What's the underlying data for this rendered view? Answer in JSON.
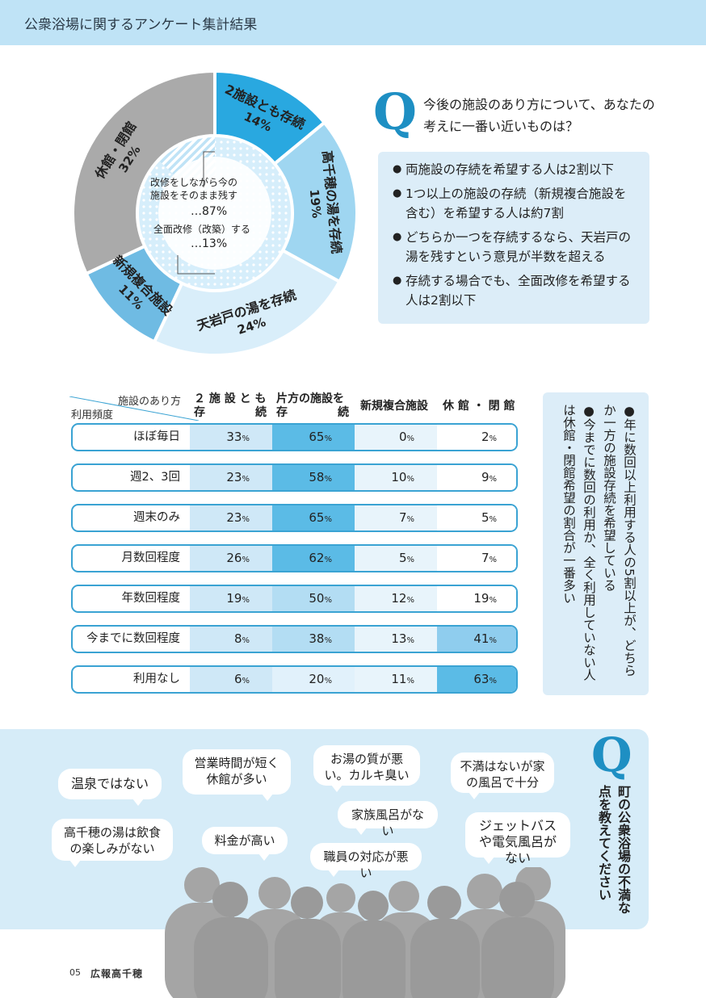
{
  "header": {
    "title": "公衆浴場に関するアンケート集計結果"
  },
  "donut": {
    "segments": [
      {
        "label": "2施設とも存続",
        "value": "14%",
        "color": "#29a8e0"
      },
      {
        "label": "高千穂の湯を存続",
        "value": "19%",
        "color": "#9fd6f1"
      },
      {
        "label": "天岩戸の湯を存続",
        "value": "24%",
        "color": "#d9eefa"
      },
      {
        "label": "新規複合施設",
        "value": "11%",
        "color": "#6fbbe3"
      },
      {
        "label": "休館・閉館",
        "value": "32%",
        "color": "#aaaaaa"
      }
    ],
    "inner": {
      "line1": "改修をしながら今の",
      "line2": "施設をそのまま残す",
      "value1": "…87%",
      "line3": "全面改修（改築）する",
      "value2": "…13%"
    }
  },
  "q1": {
    "mark": "Q",
    "text": "今後の施設のあり方について、あなたの考えに一番い近いものは？",
    "findings": [
      "両施設の存続を希望する人は2割以下",
      "1つ以上の施設の存続（新規複合施設を含む）を希望する人は約7割",
      "どちらか一つを存続するなら、天岩戸の湯を残すという意見が半数を超える",
      "存続する場合でも、全面改修を希望する人は2割以下"
    ]
  },
  "table": {
    "corner_top": "施設のあり方",
    "corner_bottom": "利用頻度",
    "columns": [
      {
        "line1": "２ 施 設 と も",
        "line2a": "存",
        "line2b": "続"
      },
      {
        "line1": "片方の施設を",
        "line2a": "存",
        "line2b": "続"
      },
      {
        "line1": "新規複合施設",
        "line2a": "",
        "line2b": ""
      },
      {
        "line1": "休 館 ・ 閉 館",
        "line2a": "",
        "line2b": ""
      }
    ],
    "rows": [
      {
        "label": "ほぼ毎日",
        "values": [
          "33",
          "65",
          "0",
          "2"
        ]
      },
      {
        "label": "週2、3回",
        "values": [
          "23",
          "58",
          "10",
          "9"
        ]
      },
      {
        "label": "週末のみ",
        "values": [
          "23",
          "65",
          "7",
          "5"
        ]
      },
      {
        "label": "月数回程度",
        "values": [
          "26",
          "62",
          "5",
          "7"
        ]
      },
      {
        "label": "年数回程度",
        "values": [
          "19",
          "50",
          "12",
          "19"
        ]
      },
      {
        "label": "今までに数回程度",
        "values": [
          "8",
          "38",
          "13",
          "41"
        ]
      },
      {
        "label": "利用なし",
        "values": [
          "6",
          "20",
          "11",
          "63"
        ]
      }
    ],
    "unit": "%",
    "side_notes": [
      "年に数回以上利用する人の5割以上が、どちらか一方の施設存続を希望している",
      "今までに数回の利用か、全く利用していない人は休館・閉館希望の割合が一番多い"
    ]
  },
  "q2": {
    "mark": "Q",
    "text": "町の公衆浴場の不満な点を教えてください",
    "bubbles": [
      "温泉ではない",
      "営業時間が短く休館が多い",
      "お湯の質が悪い。カルキ臭い",
      "不満はないが家の風呂で十分",
      "高千穂の湯は飲食の楽しみがない",
      "料金が高い",
      "家族風呂がない",
      "ジェットバスや電気風呂がない",
      "職員の対応が悪い"
    ]
  },
  "footer": {
    "page": "05",
    "name": "広報高千穂"
  }
}
